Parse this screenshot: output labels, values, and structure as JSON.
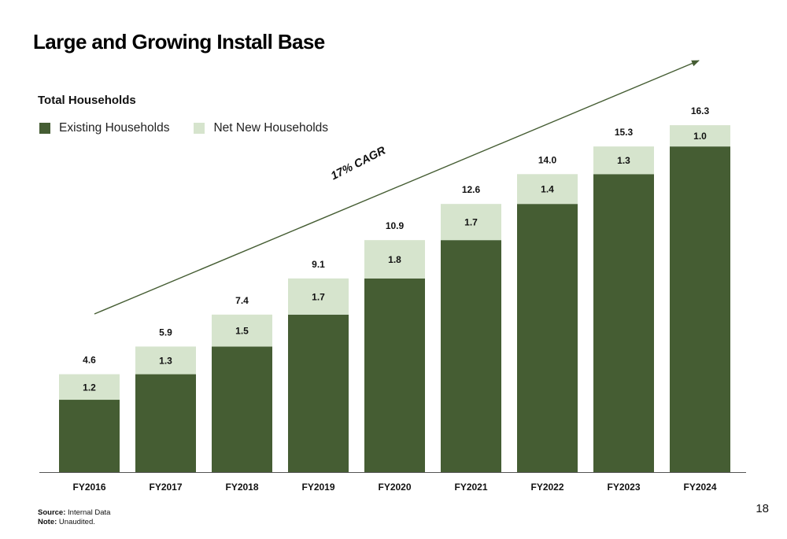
{
  "slide": {
    "title": "Large and Growing Install Base",
    "page_number": "18"
  },
  "footnotes": {
    "source_key": "Source:",
    "source_value": "Internal Data",
    "note_key": "Note:",
    "note_value": "Unaudited."
  },
  "colors": {
    "existing": "#455d33",
    "net_new": "#d6e4cd",
    "arrow": "#455d33",
    "axis": "#555555"
  },
  "chart_data": {
    "type": "bar",
    "stacked": true,
    "title": "Total Households",
    "categories": [
      "FY2016",
      "FY2017",
      "FY2018",
      "FY2019",
      "FY2020",
      "FY2021",
      "FY2022",
      "FY2023",
      "FY2024"
    ],
    "series": [
      {
        "name": "Existing Households",
        "values": [
          3.4,
          4.6,
          5.9,
          7.4,
          9.1,
          10.9,
          12.6,
          14.0,
          15.3
        ]
      },
      {
        "name": "Net New Households",
        "values": [
          1.2,
          1.3,
          1.5,
          1.7,
          1.8,
          1.7,
          1.4,
          1.3,
          1.0
        ]
      }
    ],
    "totals": [
      "4.6",
      "5.9",
      "7.4",
      "9.1",
      "10.9",
      "12.6",
      "14.0",
      "15.3",
      "16.3"
    ],
    "net_new_labels": [
      "1.2",
      "1.3",
      "1.5",
      "1.7",
      "1.8",
      "1.7",
      "1.4",
      "1.3",
      "1.0"
    ],
    "annotation": "17% CAGR",
    "legend_position": "top-left",
    "ylim": [
      0,
      18
    ],
    "grid": false
  }
}
